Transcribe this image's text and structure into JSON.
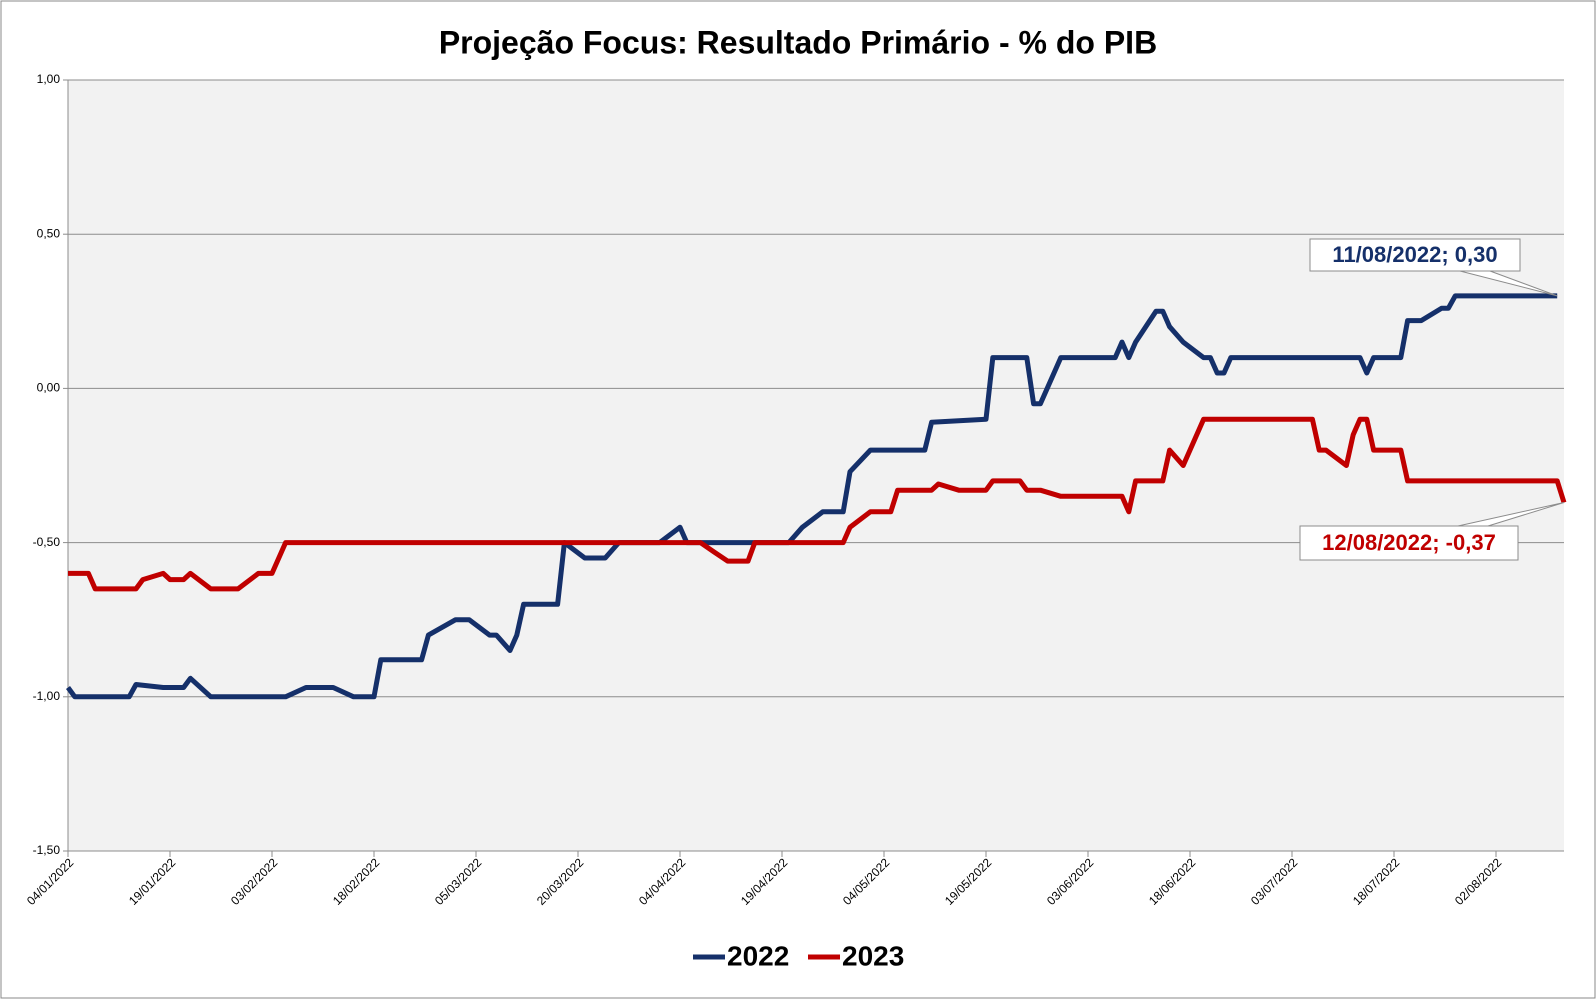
{
  "chart_data": {
    "type": "line",
    "title": "Projeção Focus: Resultado Primário - % do PIB",
    "xlim": [
      "04/01/2022",
      "12/08/2022"
    ],
    "xticks": [
      "04/01/2022",
      "19/01/2022",
      "03/02/2022",
      "18/02/2022",
      "05/03/2022",
      "20/03/2022",
      "04/04/2022",
      "19/04/2022",
      "04/05/2022",
      "19/05/2022",
      "03/06/2022",
      "18/06/2022",
      "03/07/2022",
      "18/07/2022",
      "02/08/2022"
    ],
    "ylim": [
      -1.5,
      1.0
    ],
    "yticks": [
      {
        "value": 1.0,
        "label": "1,00"
      },
      {
        "value": 0.5,
        "label": "0,50"
      },
      {
        "value": 0,
        "label": "0,00"
      },
      {
        "value": -0.5,
        "label": "-0,50"
      },
      {
        "value": -1.0,
        "label": "-1,00"
      },
      {
        "value": -1.5,
        "label": "-1,50"
      }
    ],
    "grid": true,
    "legend": "bottom",
    "series": [
      {
        "name": "2022",
        "color": "#15306a",
        "x": [
          "04/01/2022",
          "05/01/2022",
          "13/01/2022",
          "14/01/2022",
          "18/01/2022",
          "21/01/2022",
          "22/01/2022",
          "25/01/2022",
          "05/02/2022",
          "08/02/2022",
          "12/02/2022",
          "15/02/2022",
          "18/02/2022",
          "19/02/2022",
          "25/02/2022",
          "26/02/2022",
          "02/03/2022",
          "04/03/2022",
          "07/03/2022",
          "08/03/2022",
          "10/03/2022",
          "11/03/2022",
          "12/03/2022",
          "17/03/2022",
          "18/03/2022",
          "21/03/2022",
          "24/03/2022",
          "26/03/2022",
          "01/04/2022",
          "04/04/2022",
          "05/04/2022",
          "20/04/2022",
          "22/04/2022",
          "25/04/2022",
          "28/04/2022",
          "29/04/2022",
          "02/05/2022",
          "10/05/2022",
          "11/05/2022",
          "19/05/2022",
          "20/05/2022",
          "25/05/2022",
          "26/05/2022",
          "27/05/2022",
          "30/05/2022",
          "07/06/2022",
          "08/06/2022",
          "09/06/2022",
          "10/06/2022",
          "13/06/2022",
          "14/06/2022",
          "15/06/2022",
          "17/06/2022",
          "20/06/2022",
          "21/06/2022",
          "22/06/2022",
          "23/06/2022",
          "24/06/2022",
          "13/07/2022",
          "14/07/2022",
          "15/07/2022",
          "19/07/2022",
          "20/07/2022",
          "22/07/2022",
          "25/07/2022",
          "26/07/2022",
          "27/07/2022",
          "11/08/2022"
        ],
        "values": [
          -0.97,
          -1.0,
          -1.0,
          -0.96,
          -0.97,
          -0.97,
          -0.94,
          -1.0,
          -1.0,
          -0.97,
          -0.97,
          -1.0,
          -1.0,
          -0.88,
          -0.88,
          -0.8,
          -0.75,
          -0.75,
          -0.8,
          -0.8,
          -0.85,
          -0.8,
          -0.7,
          -0.7,
          -0.5,
          -0.55,
          -0.55,
          -0.5,
          -0.5,
          -0.45,
          -0.5,
          -0.5,
          -0.45,
          -0.4,
          -0.4,
          -0.27,
          -0.2,
          -0.2,
          -0.11,
          -0.1,
          0.1,
          0.1,
          -0.05,
          -0.05,
          0.1,
          0.1,
          0.15,
          0.1,
          0.15,
          0.25,
          0.25,
          0.2,
          0.15,
          0.1,
          0.1,
          0.05,
          0.05,
          0.1,
          0.1,
          0.05,
          0.1,
          0.1,
          0.22,
          0.22,
          0.26,
          0.26,
          0.3,
          0.3
        ]
      },
      {
        "name": "2023",
        "color": "#c00000",
        "x": [
          "04/01/2022",
          "07/01/2022",
          "08/01/2022",
          "14/01/2022",
          "15/01/2022",
          "18/01/2022",
          "19/01/2022",
          "21/01/2022",
          "22/01/2022",
          "25/01/2022",
          "29/01/2022",
          "01/02/2022",
          "03/02/2022",
          "05/02/2022",
          "07/04/2022",
          "09/04/2022",
          "11/04/2022",
          "14/04/2022",
          "15/04/2022",
          "28/04/2022",
          "29/04/2022",
          "02/05/2022",
          "05/05/2022",
          "06/05/2022",
          "11/05/2022",
          "12/05/2022",
          "15/05/2022",
          "19/05/2022",
          "20/05/2022",
          "24/05/2022",
          "25/05/2022",
          "27/05/2022",
          "30/05/2022",
          "08/06/2022",
          "09/06/2022",
          "10/06/2022",
          "14/06/2022",
          "15/06/2022",
          "17/06/2022",
          "20/06/2022",
          "06/07/2022",
          "07/07/2022",
          "08/07/2022",
          "11/07/2022",
          "12/07/2022",
          "13/07/2022",
          "14/07/2022",
          "15/07/2022",
          "19/07/2022",
          "20/07/2022",
          "11/08/2022",
          "12/08/2022"
        ],
        "values": [
          -0.6,
          -0.6,
          -0.65,
          -0.65,
          -0.62,
          -0.6,
          -0.62,
          -0.62,
          -0.6,
          -0.65,
          -0.65,
          -0.6,
          -0.6,
          -0.5,
          -0.5,
          -0.53,
          -0.56,
          -0.56,
          -0.5,
          -0.5,
          -0.45,
          -0.4,
          -0.4,
          -0.33,
          -0.33,
          -0.31,
          -0.33,
          -0.33,
          -0.3,
          -0.3,
          -0.33,
          -0.33,
          -0.35,
          -0.35,
          -0.4,
          -0.3,
          -0.3,
          -0.2,
          -0.25,
          -0.1,
          -0.1,
          -0.2,
          -0.2,
          -0.25,
          -0.15,
          -0.1,
          -0.1,
          -0.2,
          -0.2,
          -0.3,
          -0.3,
          -0.37
        ]
      }
    ],
    "annotations": [
      {
        "text": "11/08/2022; 0,30",
        "series": 0
      },
      {
        "text": "12/08/2022; -0,37",
        "series": 1
      }
    ]
  }
}
